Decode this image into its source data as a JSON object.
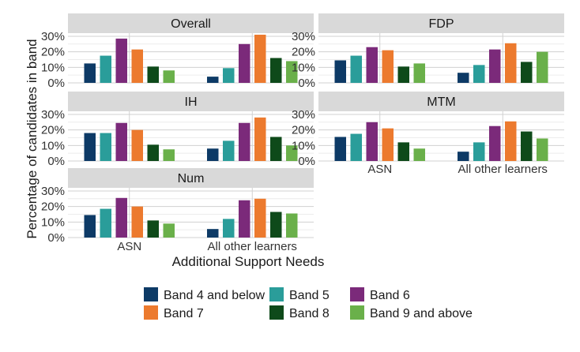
{
  "chart_data": {
    "type": "bar",
    "xlabel": "Additional Support Needs",
    "ylabel": "Percentage of candidates in band",
    "categories": [
      "ASN",
      "All other learners"
    ],
    "y_ticks": [
      "0%",
      "10%",
      "20%",
      "30%"
    ],
    "ylim": [
      0,
      32
    ],
    "grid": true,
    "legend_position": "bottom",
    "bands": [
      {
        "name": "Band 4 and below",
        "color": "#0d3a66"
      },
      {
        "name": "Band 5",
        "color": "#2a9d9a"
      },
      {
        "name": "Band 6",
        "color": "#7b2a7a"
      },
      {
        "name": "Band 7",
        "color": "#ec7a2e"
      },
      {
        "name": "Band 8",
        "color": "#0e4a1a"
      },
      {
        "name": "Band 9 and above",
        "color": "#6ab04a"
      }
    ],
    "panels": [
      {
        "title": "Overall",
        "values": {
          "ASN": [
            12.5,
            17.5,
            28.5,
            21.5,
            10.5,
            8
          ],
          "All other learners": [
            4,
            9.5,
            25,
            31,
            16,
            14
          ]
        }
      },
      {
        "title": "FDP",
        "values": {
          "ASN": [
            14.5,
            17.5,
            23,
            21,
            10.5,
            12.5
          ],
          "All other learners": [
            6.5,
            11.5,
            21.5,
            25.5,
            13.5,
            20
          ]
        }
      },
      {
        "title": "IH",
        "values": {
          "ASN": [
            18,
            18,
            24.5,
            20,
            10.5,
            7.5
          ],
          "All other learners": [
            8,
            13,
            24.5,
            28,
            15.5,
            10
          ]
        }
      },
      {
        "title": "MTM",
        "values": {
          "ASN": [
            15.5,
            17.5,
            25,
            21,
            12,
            8
          ],
          "All other learners": [
            6,
            12,
            22.5,
            25.5,
            19,
            14.5
          ]
        }
      },
      {
        "title": "Num",
        "values": {
          "ASN": [
            14.5,
            18.5,
            25.5,
            20,
            11,
            9
          ],
          "All other learners": [
            5.5,
            12,
            24,
            25,
            16.5,
            15.5
          ]
        }
      }
    ]
  }
}
